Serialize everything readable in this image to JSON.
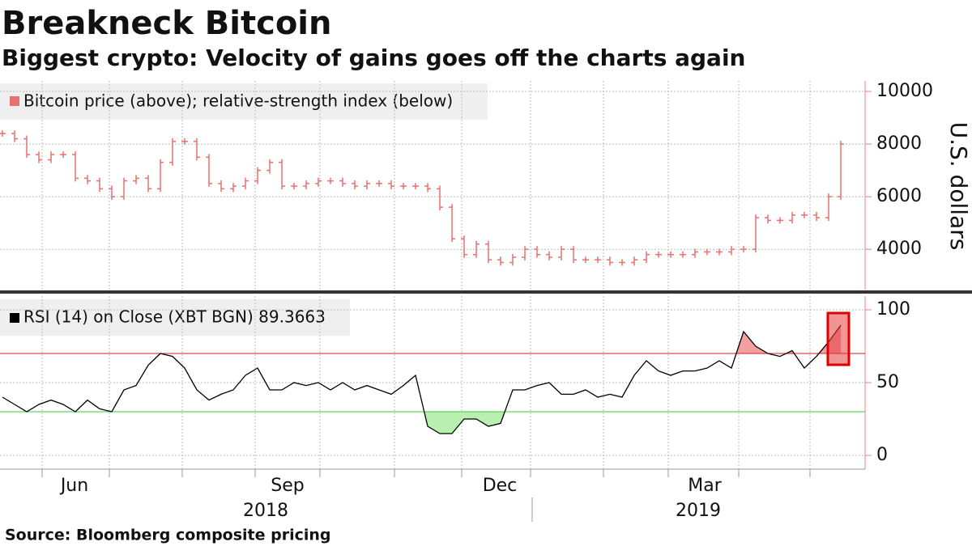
{
  "title": "Breakneck Bitcoin",
  "subtitle": "Biggest crypto: Velocity of gains goes off the charts again",
  "source": "Source: Bloomberg composite pricing",
  "x_axis": {
    "months": [
      "Jun",
      "Sep",
      "Dec",
      "Mar"
    ],
    "years": [
      "2018",
      "2019"
    ]
  },
  "chart_data": [
    {
      "type": "price-bars",
      "legend": "Bitcoin price (above); relative-strength index (below)",
      "y_label": "U.S. dollars",
      "color": "#e87070",
      "ylim": [
        2500,
        10400
      ],
      "yticks": [
        4000,
        6000,
        8000,
        10000
      ],
      "grid": true,
      "values": [
        8400,
        8200,
        7600,
        7400,
        7600,
        7600,
        6700,
        6600,
        6300,
        6000,
        6600,
        6700,
        6300,
        7300,
        8100,
        8100,
        7500,
        6500,
        6300,
        6400,
        6600,
        7000,
        7300,
        6400,
        6400,
        6500,
        6600,
        6600,
        6500,
        6400,
        6500,
        6500,
        6400,
        6400,
        6400,
        6300,
        5600,
        4400,
        3800,
        4200,
        3600,
        3500,
        3700,
        4000,
        3800,
        3700,
        4000,
        3600,
        3600,
        3600,
        3500,
        3500,
        3600,
        3800,
        3800,
        3800,
        3800,
        3900,
        3900,
        3900,
        4000,
        4000,
        5200,
        5100,
        5100,
        5300,
        5300,
        5200,
        6000,
        8000
      ]
    },
    {
      "type": "rsi-line",
      "legend": "RSI (14)  on Close (XBT BGN) 89.3663",
      "color": "#000000",
      "ylim": [
        -10,
        110
      ],
      "yticks": [
        0,
        50,
        100
      ],
      "grid": true,
      "reference_lines": [
        {
          "value": 70,
          "color": "#cc2222",
          "fill": "#f4a0a0"
        },
        {
          "value": 30,
          "color": "#33cc33",
          "fill": "#b8f0b0"
        }
      ],
      "values": [
        40,
        35,
        30,
        35,
        38,
        35,
        30,
        38,
        32,
        30,
        45,
        48,
        62,
        70,
        68,
        60,
        45,
        38,
        42,
        45,
        55,
        60,
        45,
        45,
        50,
        48,
        50,
        45,
        50,
        45,
        48,
        45,
        42,
        48,
        55,
        20,
        15,
        15,
        25,
        25,
        20,
        22,
        45,
        45,
        48,
        50,
        42,
        42,
        45,
        40,
        42,
        40,
        55,
        65,
        58,
        55,
        58,
        58,
        60,
        65,
        60,
        85,
        75,
        70,
        68,
        72,
        60,
        68,
        78,
        89.3663
      ]
    }
  ]
}
